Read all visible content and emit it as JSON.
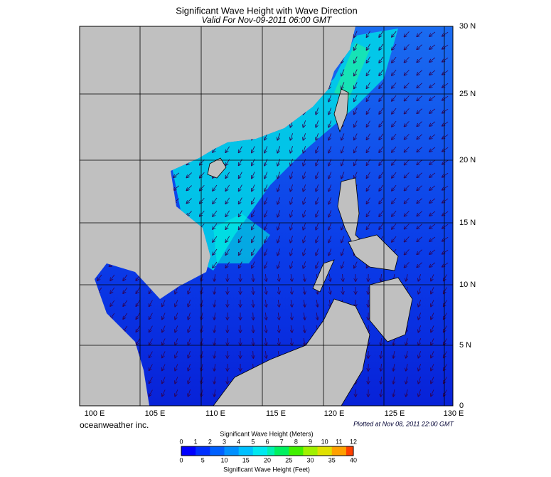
{
  "header": {
    "title": "Significant Wave Height with Wave Direction",
    "subtitle": "Valid For Nov-09-2011 06:00 GMT"
  },
  "map": {
    "lat_labels": [
      "30 N",
      "25 N",
      "20 N",
      "15 N",
      "10 N",
      "5 N",
      "0"
    ],
    "lon_labels": [
      "100 E",
      "105 E",
      "110 E",
      "115 E",
      "120 E",
      "125 E",
      "130 E"
    ],
    "credit": "oceanweather inc.",
    "plotted": "Plotted at Nov 08, 2011 22:00 GMT"
  },
  "colorbar": {
    "title_meters": "Significant Wave Height (Meters)",
    "title_feet": "Significant Wave Height (Feet)",
    "meters_ticks": [
      0,
      1,
      2,
      3,
      4,
      5,
      6,
      7,
      8,
      9,
      10,
      11,
      12
    ],
    "feet_ticks": [
      0,
      5,
      10,
      15,
      20,
      25,
      30,
      35,
      40
    ]
  }
}
